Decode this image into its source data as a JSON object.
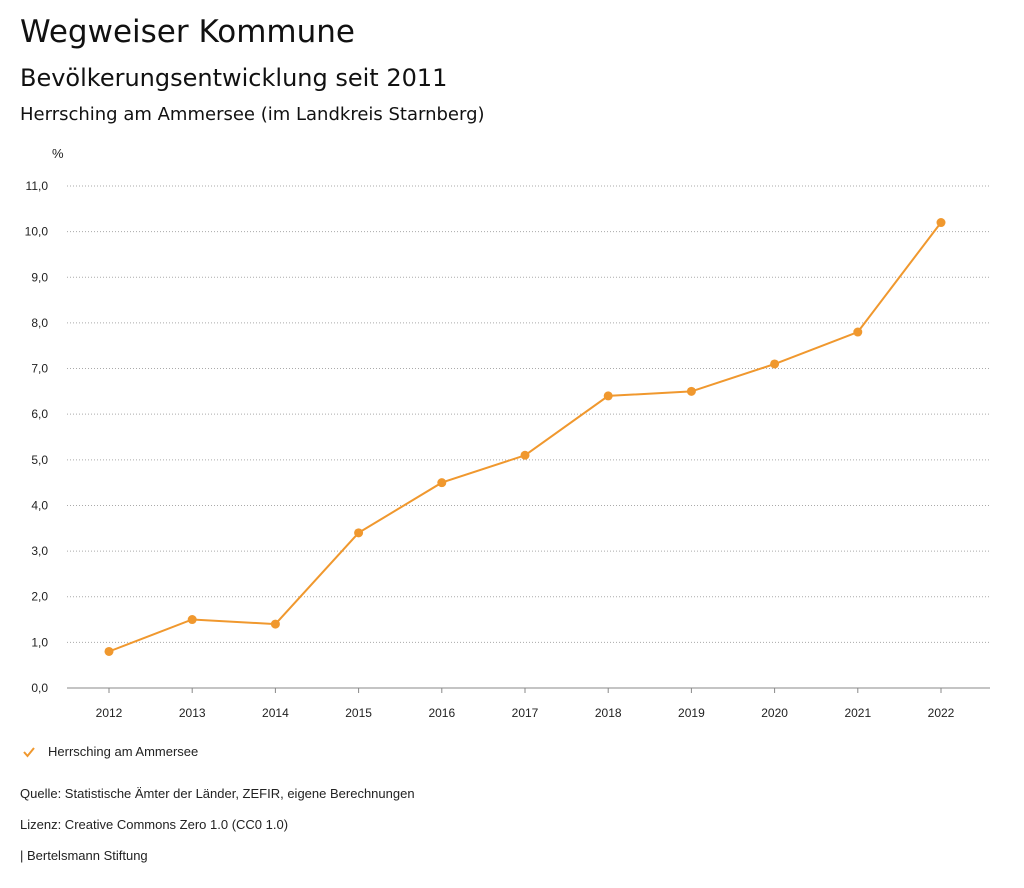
{
  "header": {
    "title": "Wegweiser Kommune",
    "subtitle": "Bevölkerungsentwicklung seit 2011",
    "region": "Herrsching am Ammersee (im Landkreis Starnberg)"
  },
  "colors": {
    "series": "#F0982E",
    "grid": "#AAAAAA",
    "axis": "#888888"
  },
  "chart_data": {
    "type": "line",
    "title": "Bevölkerungsentwicklung seit 2011",
    "ylabel": "%",
    "xlabel": "",
    "x": [
      "2012",
      "2013",
      "2014",
      "2015",
      "2016",
      "2017",
      "2018",
      "2019",
      "2020",
      "2021",
      "2022"
    ],
    "ylim": [
      0,
      11
    ],
    "yticks": [
      "0,0",
      "1,0",
      "2,0",
      "3,0",
      "4,0",
      "5,0",
      "6,0",
      "7,0",
      "8,0",
      "9,0",
      "10,0",
      "11,0"
    ],
    "grid": true,
    "legend_position": "bottom-left",
    "series": [
      {
        "name": "Herrsching am Ammersee",
        "values": [
          0.8,
          1.5,
          1.4,
          3.4,
          4.5,
          5.1,
          6.4,
          6.5,
          7.1,
          7.8,
          10.2
        ]
      }
    ]
  },
  "legend": {
    "icon": "check-icon",
    "label": "Herrsching am Ammersee"
  },
  "footer": {
    "source": "Quelle: Statistische Ämter der Länder, ZEFIR, eigene Berechnungen",
    "license": "Lizenz: Creative Commons Zero 1.0 (CC0 1.0)",
    "publisher": "| Bertelsmann Stiftung"
  }
}
